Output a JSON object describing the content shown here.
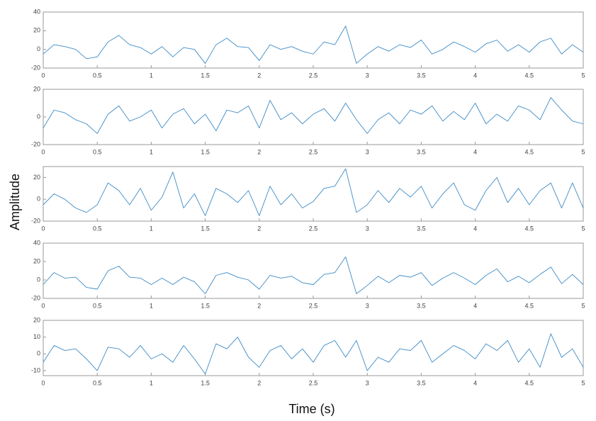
{
  "ylabel": "Amplitude",
  "xlabel": "Time (s)",
  "chart_data": [
    {
      "type": "line",
      "xlim": [
        0,
        5
      ],
      "xticks": [
        0,
        0.5,
        1,
        1.5,
        2,
        2.5,
        3,
        3.5,
        4,
        4.5,
        5
      ],
      "ylim": [
        -20,
        40
      ],
      "yticks": [
        -20,
        0,
        20,
        40
      ],
      "x": [
        0,
        0.1,
        0.2,
        0.3,
        0.4,
        0.5,
        0.6,
        0.7,
        0.8,
        0.9,
        1,
        1.1,
        1.2,
        1.3,
        1.4,
        1.5,
        1.6,
        1.7,
        1.8,
        1.9,
        2,
        2.1,
        2.2,
        2.3,
        2.4,
        2.5,
        2.6,
        2.7,
        2.8,
        2.9,
        3,
        3.1,
        3.2,
        3.3,
        3.4,
        3.5,
        3.6,
        3.7,
        3.8,
        3.9,
        4,
        4.1,
        4.2,
        4.3,
        4.4,
        4.5,
        4.6,
        4.7,
        4.8,
        4.9,
        5
      ],
      "series": [
        {
          "color": "#3d8bc6",
          "values": [
            -5,
            5,
            3,
            0,
            -10,
            -8,
            8,
            15,
            5,
            2,
            -5,
            3,
            -8,
            2,
            0,
            -15,
            5,
            12,
            3,
            2,
            -12,
            5,
            0,
            3,
            -2,
            -5,
            8,
            5,
            25,
            -15,
            -5,
            3,
            -2,
            5,
            2,
            10,
            -5,
            0,
            8,
            3,
            -3,
            6,
            10,
            -2,
            5,
            -3,
            8,
            12,
            -5,
            5,
            -3
          ]
        }
      ]
    },
    {
      "type": "line",
      "xlim": [
        0,
        5
      ],
      "xticks": [
        0,
        0.5,
        1,
        1.5,
        2,
        2.5,
        3,
        3.5,
        4,
        4.5,
        5
      ],
      "ylim": [
        -20,
        20
      ],
      "yticks": [
        -20,
        0,
        20
      ],
      "x": [
        0,
        0.1,
        0.2,
        0.3,
        0.4,
        0.5,
        0.6,
        0.7,
        0.8,
        0.9,
        1,
        1.1,
        1.2,
        1.3,
        1.4,
        1.5,
        1.6,
        1.7,
        1.8,
        1.9,
        2,
        2.1,
        2.2,
        2.3,
        2.4,
        2.5,
        2.6,
        2.7,
        2.8,
        2.9,
        3,
        3.1,
        3.2,
        3.3,
        3.4,
        3.5,
        3.6,
        3.7,
        3.8,
        3.9,
        4,
        4.1,
        4.2,
        4.3,
        4.4,
        4.5,
        4.6,
        4.7,
        4.8,
        4.9,
        5
      ],
      "series": [
        {
          "color": "#3d8bc6",
          "values": [
            -8,
            5,
            3,
            -2,
            -5,
            -12,
            2,
            8,
            -3,
            0,
            5,
            -8,
            2,
            6,
            -5,
            2,
            -10,
            5,
            3,
            8,
            -8,
            12,
            -2,
            3,
            -5,
            2,
            6,
            -3,
            10,
            -2,
            -12,
            -2,
            3,
            -5,
            5,
            2,
            8,
            -3,
            4,
            -2,
            10,
            -5,
            2,
            -3,
            8,
            5,
            -2,
            14,
            5,
            -3,
            -5
          ]
        }
      ]
    },
    {
      "type": "line",
      "xlim": [
        0,
        5
      ],
      "xticks": [
        0,
        0.5,
        1,
        1.5,
        2,
        2.5,
        3,
        3.5,
        4,
        4.5,
        5
      ],
      "ylim": [
        -20,
        30
      ],
      "yticks": [
        -20,
        0,
        20
      ],
      "x": [
        0,
        0.1,
        0.2,
        0.3,
        0.4,
        0.5,
        0.6,
        0.7,
        0.8,
        0.9,
        1,
        1.1,
        1.2,
        1.3,
        1.4,
        1.5,
        1.6,
        1.7,
        1.8,
        1.9,
        2,
        2.1,
        2.2,
        2.3,
        2.4,
        2.5,
        2.6,
        2.7,
        2.8,
        2.9,
        3,
        3.1,
        3.2,
        3.3,
        3.4,
        3.5,
        3.6,
        3.7,
        3.8,
        3.9,
        4,
        4.1,
        4.2,
        4.3,
        4.4,
        4.5,
        4.6,
        4.7,
        4.8,
        4.9,
        5
      ],
      "series": [
        {
          "color": "#3d8bc6",
          "values": [
            -5,
            5,
            0,
            -8,
            -12,
            -5,
            15,
            8,
            -5,
            10,
            -10,
            2,
            25,
            -8,
            5,
            -15,
            10,
            5,
            -3,
            8,
            -15,
            12,
            -5,
            5,
            -8,
            -2,
            10,
            12,
            28,
            -12,
            -5,
            8,
            -3,
            10,
            2,
            12,
            -8,
            5,
            15,
            -5,
            -10,
            8,
            20,
            -3,
            10,
            -5,
            8,
            15,
            -8,
            15,
            -8
          ]
        }
      ]
    },
    {
      "type": "line",
      "xlim": [
        0,
        5
      ],
      "xticks": [
        0,
        0.5,
        1,
        1.5,
        2,
        2.5,
        3,
        3.5,
        4,
        4.5,
        5
      ],
      "ylim": [
        -20,
        40
      ],
      "yticks": [
        -20,
        0,
        20,
        40
      ],
      "x": [
        0,
        0.1,
        0.2,
        0.3,
        0.4,
        0.5,
        0.6,
        0.7,
        0.8,
        0.9,
        1,
        1.1,
        1.2,
        1.3,
        1.4,
        1.5,
        1.6,
        1.7,
        1.8,
        1.9,
        2,
        2.1,
        2.2,
        2.3,
        2.4,
        2.5,
        2.6,
        2.7,
        2.8,
        2.9,
        3,
        3.1,
        3.2,
        3.3,
        3.4,
        3.5,
        3.6,
        3.7,
        3.8,
        3.9,
        4,
        4.1,
        4.2,
        4.3,
        4.4,
        4.5,
        4.6,
        4.7,
        4.8,
        4.9,
        5
      ],
      "series": [
        {
          "color": "#3d8bc6",
          "values": [
            -5,
            8,
            2,
            3,
            -8,
            -10,
            10,
            15,
            3,
            2,
            -5,
            2,
            -5,
            3,
            -2,
            -15,
            5,
            8,
            3,
            0,
            -10,
            5,
            2,
            4,
            -3,
            -5,
            6,
            8,
            25,
            -15,
            -6,
            4,
            -3,
            5,
            3,
            8,
            -6,
            2,
            8,
            2,
            -5,
            5,
            12,
            -2,
            4,
            -3,
            6,
            14,
            -4,
            6,
            -5
          ]
        }
      ]
    },
    {
      "type": "line",
      "xlim": [
        0,
        5
      ],
      "xticks": [
        0,
        0.5,
        1,
        1.5,
        2,
        2.5,
        3,
        3.5,
        4,
        4.5,
        5
      ],
      "ylim": [
        -13,
        20
      ],
      "yticks": [
        -10,
        0,
        10,
        20
      ],
      "x": [
        0,
        0.1,
        0.2,
        0.3,
        0.4,
        0.5,
        0.6,
        0.7,
        0.8,
        0.9,
        1,
        1.1,
        1.2,
        1.3,
        1.4,
        1.5,
        1.6,
        1.7,
        1.8,
        1.9,
        2,
        2.1,
        2.2,
        2.3,
        2.4,
        2.5,
        2.6,
        2.7,
        2.8,
        2.9,
        3,
        3.1,
        3.2,
        3.3,
        3.4,
        3.5,
        3.6,
        3.7,
        3.8,
        3.9,
        4,
        4.1,
        4.2,
        4.3,
        4.4,
        4.5,
        4.6,
        4.7,
        4.8,
        4.9,
        5
      ],
      "series": [
        {
          "color": "#3d8bc6",
          "values": [
            -5,
            5,
            2,
            3,
            -3,
            -10,
            4,
            3,
            -2,
            5,
            -3,
            0,
            -5,
            5,
            -3,
            -12,
            6,
            3,
            10,
            -2,
            -8,
            2,
            5,
            -3,
            3,
            -5,
            5,
            8,
            -2,
            8,
            -10,
            -2,
            -5,
            3,
            2,
            8,
            -5,
            0,
            5,
            2,
            -3,
            6,
            2,
            8,
            -5,
            3,
            -8,
            12,
            -2,
            3,
            -8
          ]
        }
      ]
    }
  ]
}
